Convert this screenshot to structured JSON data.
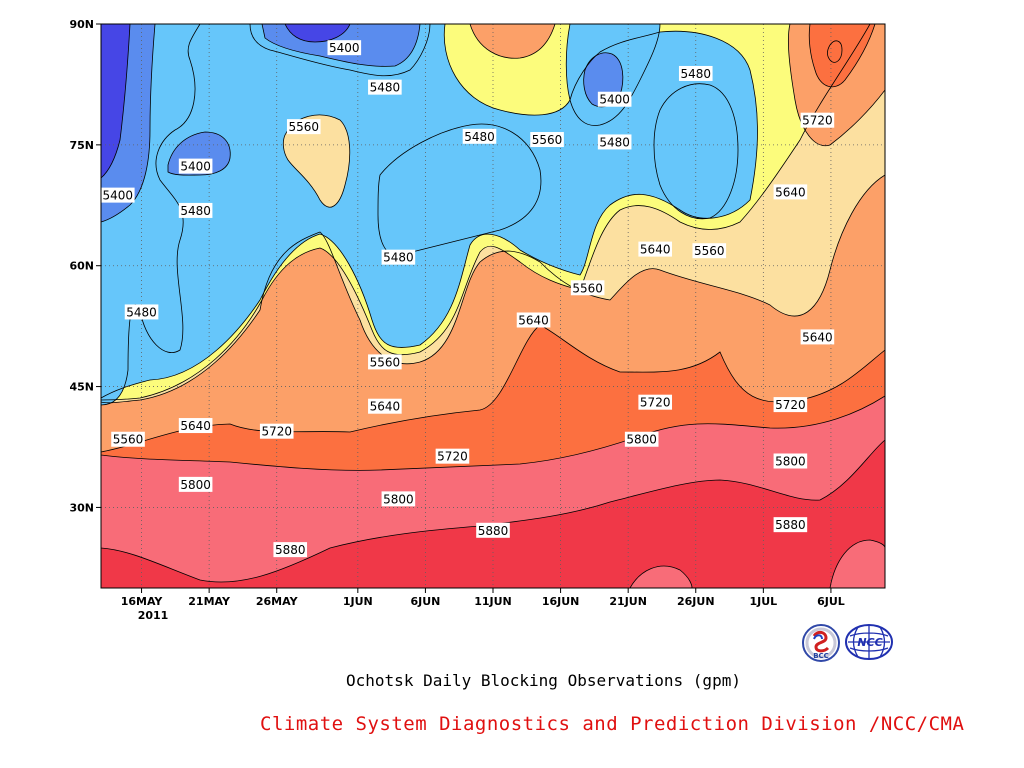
{
  "chart_data": {
    "type": "contour",
    "title": "Ochotsk Daily Blocking Observations (gpm)",
    "x_ticks": [
      "16MAY",
      "21MAY",
      "26MAY",
      "1JUN",
      "6JUN",
      "11JUN",
      "16JUN",
      "21JUN",
      "26JUN",
      "1JUL",
      "6JUL"
    ],
    "x_year_label": "2011",
    "x_range": [
      "13MAY2011",
      "10JUL2011"
    ],
    "y_ticks": [
      "30N",
      "45N",
      "60N",
      "75N",
      "90N"
    ],
    "y_range": [
      20,
      90
    ],
    "levels": [
      5400,
      5480,
      5560,
      5640,
      5720,
      5800,
      5880
    ],
    "level_colors": {
      "below_5400": "#4646e6",
      "5400_5480": "#5a8cee",
      "5480_5560": "#66c6fa",
      "5560_5640": "#fcfc7c",
      "5640_5720": "#fce0a0",
      "5720_5800": "#fca068",
      "5800_5880": "#fc7040",
      "5880_5960": "#f86c78",
      "above_5960": "#f03848"
    },
    "contour_labels": [
      {
        "value": "5400",
        "x": "14MAY",
        "y": 68.7
      },
      {
        "value": "5400",
        "x": "20MAY",
        "y": 72.3
      },
      {
        "value": "5400",
        "x": "31MAY",
        "y": 87.0
      },
      {
        "value": "5400",
        "x": "20JUN",
        "y": 80.6
      },
      {
        "value": "5480",
        "x": "16MAY",
        "y": 54.2
      },
      {
        "value": "5480",
        "x": "20MAY",
        "y": 66.8
      },
      {
        "value": "5480",
        "x": "3JUN",
        "y": 82.1
      },
      {
        "value": "5480",
        "x": "4JUN",
        "y": 61.0
      },
      {
        "value": "5480",
        "x": "10JUN",
        "y": 76.0
      },
      {
        "value": "5480",
        "x": "20JUN",
        "y": 75.3
      },
      {
        "value": "5480",
        "x": "26JUN",
        "y": 83.8
      },
      {
        "value": "5560",
        "x": "28MAY",
        "y": 77.2
      },
      {
        "value": "5560",
        "x": "3JUN",
        "y": 48.0
      },
      {
        "value": "5560",
        "x": "15JUN",
        "y": 75.6
      },
      {
        "value": "5560",
        "x": "18JUN",
        "y": 57.2
      },
      {
        "value": "5560",
        "x": "27JUN",
        "y": 61.8
      },
      {
        "value": "5560",
        "x": "15MAY",
        "y": 38.4
      },
      {
        "value": "5640",
        "x": "20MAY",
        "y": 40.1
      },
      {
        "value": "5640",
        "x": "3JUN",
        "y": 42.5
      },
      {
        "value": "5640",
        "x": "14JUN",
        "y": 53.2
      },
      {
        "value": "5640",
        "x": "23JUN",
        "y": 62.0
      },
      {
        "value": "5640",
        "x": "3JUL",
        "y": 69.1
      },
      {
        "value": "5640",
        "x": "5JUL",
        "y": 51.1
      },
      {
        "value": "5720",
        "x": "26MAY",
        "y": 39.4
      },
      {
        "value": "5720",
        "x": "8JUN",
        "y": 36.3
      },
      {
        "value": "5720",
        "x": "23JUN",
        "y": 43.0
      },
      {
        "value": "5720",
        "x": "3JUL",
        "y": 42.7
      },
      {
        "value": "5720",
        "x": "5JUL",
        "y": 78.0
      },
      {
        "value": "5800",
        "x": "20MAY",
        "y": 32.8
      },
      {
        "value": "5800",
        "x": "4JUN",
        "y": 31.0
      },
      {
        "value": "5800",
        "x": "22JUN",
        "y": 38.4
      },
      {
        "value": "5800",
        "x": "3JUL",
        "y": 35.7
      },
      {
        "value": "5880",
        "x": "27MAY",
        "y": 24.7
      },
      {
        "value": "5880",
        "x": "11JUN",
        "y": 27.1
      },
      {
        "value": "5880",
        "x": "3JUL",
        "y": 27.8
      }
    ],
    "grid": "dotted"
  },
  "footer": {
    "credit": "Climate System Diagnostics and Prediction Division /NCC/CMA",
    "logos": [
      {
        "name": "bcc-logo",
        "text": "BCC"
      },
      {
        "name": "ncc-logo",
        "text": "NCC"
      }
    ]
  }
}
